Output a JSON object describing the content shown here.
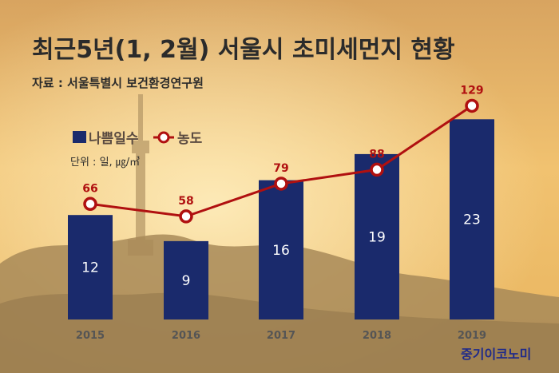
{
  "title": "최근5년(1, 2월) 서울시 초미세먼지 현황",
  "source": "자료 : 서울특별시 보건환경연구원",
  "unit": "단위 : 일, ㎍/㎥",
  "brand": "중기이코노미",
  "colors": {
    "bar": "#1a2a6c",
    "line": "#b01010",
    "marker_fill": "#ffffff",
    "sky_top": "#d8a460",
    "sky_mid": "#f1c270",
    "sky_bottom": "#e8b45e",
    "hills": "#a88a58"
  },
  "chart_data": {
    "type": "bar",
    "categories": [
      "2015",
      "2016",
      "2017",
      "2018",
      "2019"
    ],
    "series": [
      {
        "name": "나쁨일수",
        "type": "bar",
        "values": [
          12,
          9,
          16,
          19,
          23
        ]
      },
      {
        "name": "농도",
        "type": "line",
        "values": [
          66,
          58,
          79,
          88,
          129
        ]
      }
    ],
    "legend_position": "top-left",
    "grid": false
  }
}
